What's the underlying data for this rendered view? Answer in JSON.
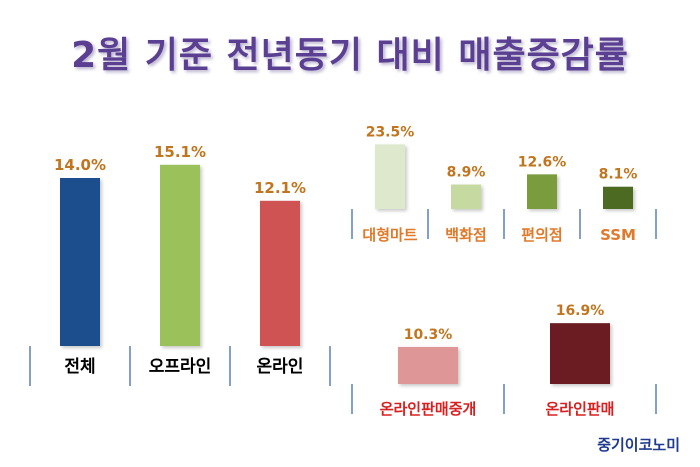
{
  "title": "2월 기준 전년동기 대비 매출증감률",
  "source": "중기이코노미",
  "chart_data": [
    {
      "type": "bar",
      "categories": [
        "전체",
        "오프라인",
        "온라인"
      ],
      "values": [
        14.0,
        15.1,
        12.1
      ],
      "value_labels": [
        "14.0%",
        "15.1%",
        "12.1%"
      ],
      "colors": [
        "#1f4e8c",
        "#9bc25a",
        "#cf5353"
      ],
      "label_color": "#c0751e",
      "category_color": "#000000"
    },
    {
      "type": "bar",
      "categories": [
        "대형마트",
        "백화점",
        "편의점",
        "SSM"
      ],
      "values": [
        23.5,
        8.9,
        12.6,
        8.1
      ],
      "value_labels": [
        "23.5%",
        "8.9%",
        "12.6%",
        "8.1%"
      ],
      "colors": [
        "#dde8cc",
        "#c5d9a0",
        "#7a9c3e",
        "#4d6a24"
      ],
      "label_color": "#c0751e",
      "category_color": "#e07a2a"
    },
    {
      "type": "bar",
      "categories": [
        "온라인판매중개",
        "온라인판매"
      ],
      "values": [
        10.3,
        16.9
      ],
      "value_labels": [
        "10.3%",
        "16.9%"
      ],
      "colors": [
        "#de9696",
        "#6b1f24"
      ],
      "label_color": "#c0751e",
      "category_color": "#d92020"
    }
  ]
}
